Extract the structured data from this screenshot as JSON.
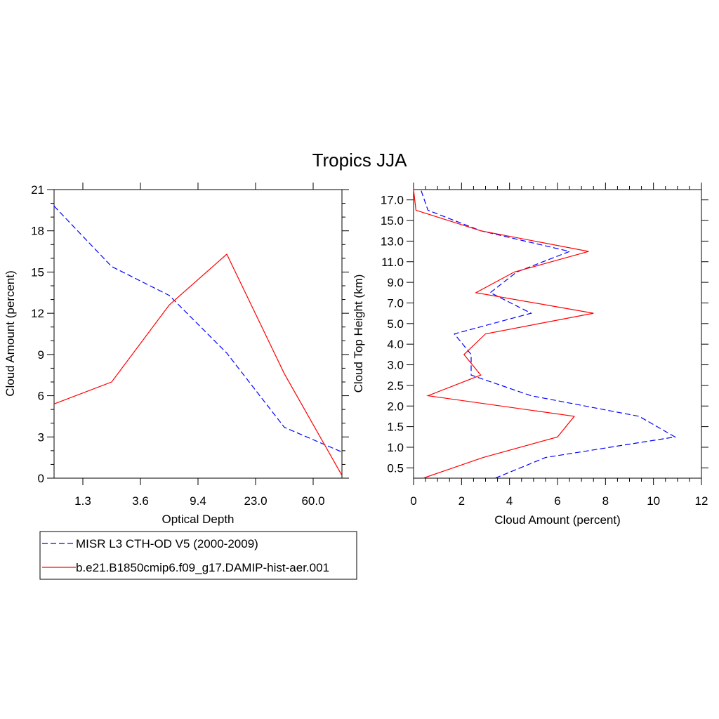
{
  "figure": {
    "title": "Tropics JJA"
  },
  "series_styles": {
    "obs": {
      "color": "#0000ff",
      "dash": "dashed"
    },
    "model": {
      "color": "#ff0000",
      "dash": "solid"
    }
  },
  "legend": {
    "entries": [
      {
        "key": "obs",
        "label": "MISR L3 CTH-OD V5 (2000-2009)"
      },
      {
        "key": "model",
        "label": "b.e21.B1850cmip6.f09_g17.DAMIP-hist-aer.001"
      }
    ]
  },
  "chart_data": [
    {
      "type": "line",
      "title": "",
      "xlabel": "Optical Depth",
      "ylabel": "Cloud Amount (percent)",
      "xlim": [
        0,
        5
      ],
      "ylim": [
        0,
        21
      ],
      "x_ticks": [
        0.5,
        1.5,
        2.5,
        3.5,
        4.5
      ],
      "x_tick_labels": [
        "1.3",
        "3.6",
        "9.4",
        "23.0",
        "60.0"
      ],
      "y_ticks": [
        0,
        3,
        6,
        9,
        12,
        15,
        18,
        21
      ],
      "y_tick_labels": [
        "0",
        "3",
        "6",
        "9",
        "12",
        "15",
        "18",
        "21"
      ],
      "series": [
        {
          "name": "MISR L3 CTH-OD V5 (2000-2009)",
          "key": "obs",
          "x": [
            0,
            1,
            2,
            3,
            4,
            5
          ],
          "y": [
            19.8,
            15.4,
            13.3,
            9.1,
            3.7,
            1.9
          ]
        },
        {
          "name": "b.e21.B1850cmip6.f09_g17.DAMIP-hist-aer.001",
          "key": "model",
          "x": [
            0,
            1,
            2,
            3,
            4,
            5
          ],
          "y": [
            5.4,
            7.0,
            12.6,
            16.3,
            7.6,
            0.2
          ]
        }
      ]
    },
    {
      "type": "line",
      "title": "",
      "xlabel": "Cloud Amount (percent)",
      "ylabel": "Cloud Top Height (km)",
      "xlim": [
        0,
        12
      ],
      "ylim": [
        0,
        14
      ],
      "x_ticks": [
        0,
        2,
        4,
        6,
        8,
        10,
        12
      ],
      "x_tick_labels": [
        "0",
        "2",
        "4",
        "6",
        "8",
        "10",
        "12"
      ],
      "y_ticks": [
        0.5,
        1.5,
        2.5,
        3.5,
        4.5,
        5.5,
        6.5,
        7.5,
        8.5,
        9.5,
        10.5,
        11.5,
        12.5,
        13.5
      ],
      "y_tick_labels": [
        "0.5",
        "1.0",
        "1.5",
        "2.0",
        "2.5",
        "3.0",
        "4.0",
        "5.0",
        "7.0",
        "9.0",
        "11.0",
        "13.0",
        "15.0",
        "17.0"
      ],
      "series": [
        {
          "name": "MISR L3 CTH-OD V5 (2000-2009)",
          "key": "obs",
          "x": [
            3.4,
            5.5,
            10.9,
            9.4,
            4.9,
            2.4,
            2.4,
            1.7,
            4.9,
            3.2,
            4.3,
            6.5,
            2.8,
            0.6,
            0.3
          ],
          "y": [
            0,
            1,
            2,
            3,
            4,
            5,
            6,
            7,
            8,
            9,
            10,
            11,
            12,
            13,
            14
          ]
        },
        {
          "name": "b.e21.B1850cmip6.f09_g17.DAMIP-hist-aer.001",
          "key": "model",
          "x": [
            0.4,
            2.9,
            6.0,
            6.7,
            0.6,
            2.8,
            2.1,
            3.0,
            7.5,
            2.6,
            4.2,
            7.3,
            2.8,
            0.1,
            0.0
          ],
          "y": [
            0,
            1,
            2,
            3,
            4,
            5,
            6,
            7,
            8,
            9,
            10,
            11,
            12,
            13,
            14
          ]
        }
      ]
    }
  ]
}
